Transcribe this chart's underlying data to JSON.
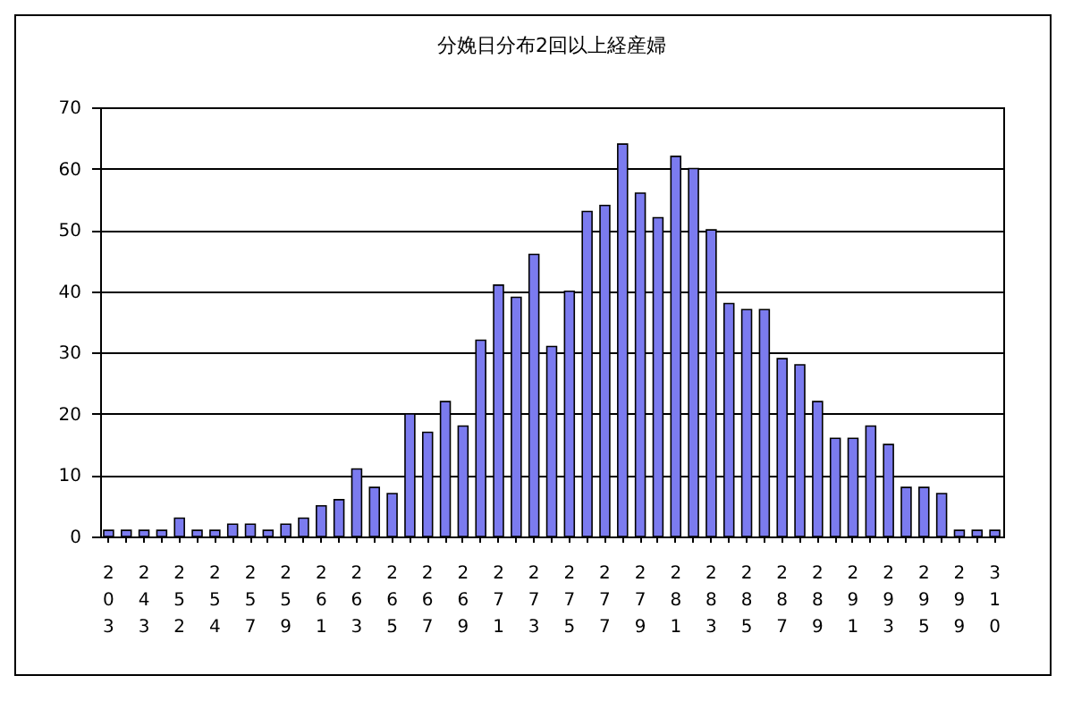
{
  "chart_data": {
    "type": "bar",
    "title": "分娩日分布2回以上経産婦",
    "categories": [
      "203",
      null,
      "243",
      null,
      "252",
      null,
      "254",
      null,
      "257",
      null,
      "259",
      null,
      "261",
      null,
      "263",
      null,
      "265",
      null,
      "267",
      null,
      "269",
      null,
      "271",
      null,
      "273",
      null,
      "275",
      null,
      "277",
      null,
      "279",
      null,
      "281",
      null,
      "283",
      null,
      "285",
      null,
      "287",
      null,
      "289",
      null,
      "291",
      null,
      "293",
      null,
      "295",
      null,
      "299",
      null,
      "310"
    ],
    "values": [
      1,
      1,
      1,
      1,
      3,
      1,
      1,
      2,
      2,
      1,
      2,
      3,
      5,
      6,
      11,
      8,
      7,
      20,
      17,
      22,
      18,
      32,
      41,
      39,
      46,
      31,
      40,
      53,
      54,
      64,
      56,
      52,
      62,
      60,
      50,
      38,
      37,
      37,
      29,
      28,
      22,
      16,
      16,
      18,
      15,
      8,
      8,
      7,
      1,
      1,
      1
    ],
    "color": "#7b7bef",
    "ylim": [
      0,
      70
    ],
    "yticks": [
      0,
      10,
      20,
      30,
      40,
      50,
      60,
      70
    ],
    "grid": "y"
  }
}
